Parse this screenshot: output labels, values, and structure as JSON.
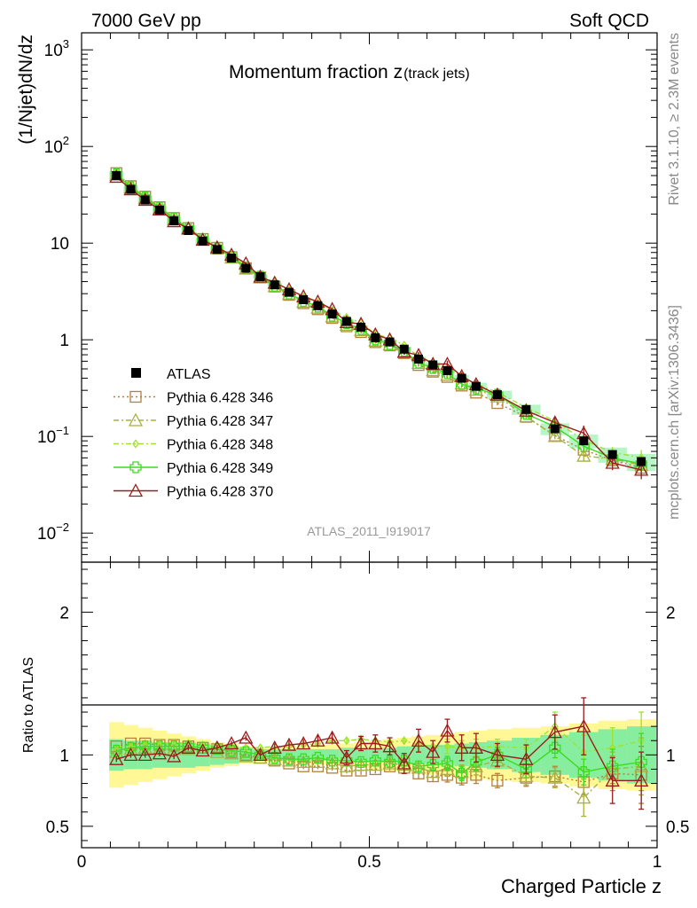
{
  "header": {
    "left": "7000 GeV pp",
    "right": "Soft QCD"
  },
  "side_labels": {
    "rivet": "Rivet 3.1.10, ≥ 2.3M events",
    "mcplots": "mcplots.cern.ch [arXiv:1306.3436]"
  },
  "chart_data": {
    "type": "scatter",
    "title_main": "Momentum fraction z",
    "title_sub": "(track jets)",
    "watermark": "ATLAS_2011_I919017",
    "xlabel": "Charged Particle z",
    "ylabel": "(1/Njet)dN/dz",
    "ratio_ylabel": "Ratio to ATLAS",
    "xlim": [
      0,
      1
    ],
    "ylim": [
      0.005,
      1500
    ],
    "yscale": "log",
    "ratio_ylim": [
      0.35,
      2.35
    ],
    "x_tick_labels": [
      "0",
      "0.5",
      "1"
    ],
    "ratio_tick_labels": [
      "0.5",
      "1",
      "2"
    ],
    "x": [
      0.0605,
      0.0855,
      0.1105,
      0.1355,
      0.1605,
      0.1855,
      0.2105,
      0.2355,
      0.2605,
      0.2855,
      0.3105,
      0.3355,
      0.3605,
      0.3855,
      0.4105,
      0.4355,
      0.4605,
      0.4855,
      0.5105,
      0.5355,
      0.5605,
      0.5855,
      0.6105,
      0.6355,
      0.6605,
      0.6855,
      0.7225,
      0.7725,
      0.8225,
      0.8725,
      0.9225,
      0.9725
    ],
    "data": {
      "name": "ATLAS",
      "values": [
        50,
        36,
        28,
        22,
        17,
        13.5,
        10.5,
        8.6,
        7.0,
        5.5,
        4.5,
        3.7,
        3.1,
        2.6,
        2.25,
        1.85,
        1.55,
        1.35,
        1.05,
        0.95,
        0.8,
        0.63,
        0.55,
        0.48,
        0.4,
        0.33,
        0.27,
        0.19,
        0.12,
        0.09,
        0.065,
        0.055
      ],
      "band_inner": [
        0.11,
        0.1,
        0.1,
        0.09,
        0.09,
        0.09,
        0.08,
        0.07,
        0.06,
        0.05,
        0.04,
        0.04,
        0.04,
        0.04,
        0.04,
        0.04,
        0.05,
        0.05,
        0.05,
        0.05,
        0.06,
        0.06,
        0.07,
        0.07,
        0.08,
        0.09,
        0.1,
        0.12,
        0.14,
        0.16,
        0.18,
        0.2
      ],
      "band_outer": [
        0.23,
        0.21,
        0.19,
        0.17,
        0.15,
        0.13,
        0.11,
        0.09,
        0.08,
        0.06,
        0.05,
        0.05,
        0.06,
        0.06,
        0.07,
        0.07,
        0.08,
        0.09,
        0.1,
        0.11,
        0.12,
        0.13,
        0.14,
        0.15,
        0.16,
        0.17,
        0.18,
        0.19,
        0.2,
        0.22,
        0.24,
        0.25
      ]
    },
    "series": [
      {
        "name": "Pythia 6.428 346",
        "color": "#b5803d",
        "marker": "square",
        "dash": "2,3",
        "ratio": [
          1.06,
          1.08,
          1.08,
          1.07,
          1.07,
          1.06,
          1.05,
          1.04,
          1.02,
          1.0,
          0.98,
          0.96,
          0.94,
          0.92,
          0.92,
          0.91,
          0.89,
          0.89,
          0.9,
          0.92,
          0.91,
          0.87,
          0.85,
          0.86,
          0.84,
          0.86,
          0.82,
          0.84,
          0.85,
          0.81,
          0.87,
          0.86
        ],
        "err": [
          0.01,
          0.01,
          0.01,
          0.01,
          0.01,
          0.01,
          0.01,
          0.01,
          0.01,
          0.01,
          0.01,
          0.01,
          0.01,
          0.02,
          0.02,
          0.02,
          0.02,
          0.03,
          0.03,
          0.03,
          0.03,
          0.04,
          0.04,
          0.05,
          0.05,
          0.06,
          0.05,
          0.06,
          0.07,
          0.09,
          0.12,
          0.2
        ]
      },
      {
        "name": "Pythia 6.428 347",
        "color": "#a8b040",
        "marker": "triangle",
        "dash": "6,3,2,3",
        "ratio": [
          1.02,
          1.04,
          1.05,
          1.04,
          1.04,
          1.04,
          1.03,
          1.02,
          1.01,
          0.99,
          0.98,
          0.97,
          0.96,
          0.95,
          0.95,
          0.94,
          0.92,
          0.93,
          0.93,
          0.94,
          0.93,
          0.91,
          0.88,
          0.9,
          0.88,
          0.92,
          0.96,
          0.85,
          0.84,
          0.7,
          0.9,
          0.92
        ],
        "err": [
          0.01,
          0.01,
          0.01,
          0.01,
          0.01,
          0.01,
          0.01,
          0.01,
          0.01,
          0.01,
          0.01,
          0.01,
          0.01,
          0.02,
          0.02,
          0.02,
          0.02,
          0.03,
          0.03,
          0.03,
          0.03,
          0.04,
          0.04,
          0.05,
          0.05,
          0.06,
          0.05,
          0.06,
          0.07,
          0.13,
          0.12,
          0.2
        ]
      },
      {
        "name": "Pythia 6.428 348",
        "color": "#9fe22e",
        "marker": "diamond",
        "dash": "6,3,2,3",
        "ratio": [
          1.05,
          1.07,
          1.08,
          1.08,
          1.08,
          1.08,
          1.07,
          1.07,
          1.06,
          1.05,
          1.05,
          1.06,
          1.06,
          1.07,
          1.08,
          1.1,
          1.1,
          1.11,
          1.1,
          1.09,
          1.1,
          1.07,
          1.06,
          1.06,
          1.05,
          1.05,
          1.06,
          1.05,
          1.2,
          1.02,
          1.05,
          1.1
        ],
        "err": [
          0.01,
          0.01,
          0.01,
          0.01,
          0.01,
          0.01,
          0.01,
          0.01,
          0.01,
          0.01,
          0.01,
          0.01,
          0.01,
          0.02,
          0.02,
          0.02,
          0.02,
          0.03,
          0.03,
          0.03,
          0.03,
          0.04,
          0.04,
          0.05,
          0.05,
          0.06,
          0.05,
          0.06,
          0.1,
          0.12,
          0.14,
          0.2
        ]
      },
      {
        "name": "Pythia 6.428 349",
        "color": "#3ddc20",
        "marker": "cross",
        "dash": "",
        "ratio": [
          1.03,
          1.05,
          1.06,
          1.06,
          1.06,
          1.06,
          1.05,
          1.04,
          1.03,
          1.02,
          1.0,
          0.98,
          0.97,
          0.97,
          0.98,
          0.96,
          0.96,
          0.95,
          0.96,
          0.95,
          0.96,
          0.92,
          0.93,
          0.94,
          0.87,
          0.95,
          1.0,
          0.9,
          1.05,
          0.88,
          0.92,
          0.95
        ],
        "err": [
          0.01,
          0.01,
          0.01,
          0.01,
          0.01,
          0.01,
          0.01,
          0.01,
          0.01,
          0.01,
          0.01,
          0.01,
          0.01,
          0.02,
          0.02,
          0.02,
          0.02,
          0.03,
          0.03,
          0.03,
          0.03,
          0.04,
          0.04,
          0.05,
          0.05,
          0.06,
          0.05,
          0.06,
          0.07,
          0.09,
          0.12,
          0.2
        ]
      },
      {
        "name": "Pythia 6.428 370",
        "color": "#9b1c1c",
        "marker": "triangle",
        "dash": "",
        "ratio": [
          0.97,
          1.0,
          1.0,
          1.01,
          0.99,
          1.05,
          1.03,
          1.05,
          1.08,
          1.12,
          1.0,
          1.05,
          1.07,
          1.08,
          1.1,
          1.12,
          0.98,
          1.08,
          1.08,
          1.06,
          0.94,
          1.1,
          1.02,
          1.17,
          1.05,
          1.05,
          1.0,
          0.97,
          1.16,
          1.2,
          0.82,
          0.82
        ],
        "err": [
          0.02,
          0.02,
          0.02,
          0.02,
          0.02,
          0.02,
          0.02,
          0.02,
          0.02,
          0.02,
          0.03,
          0.03,
          0.03,
          0.03,
          0.04,
          0.04,
          0.05,
          0.05,
          0.06,
          0.06,
          0.07,
          0.08,
          0.08,
          0.08,
          0.09,
          0.1,
          0.08,
          0.1,
          0.12,
          0.2,
          0.16,
          0.2
        ]
      }
    ]
  }
}
